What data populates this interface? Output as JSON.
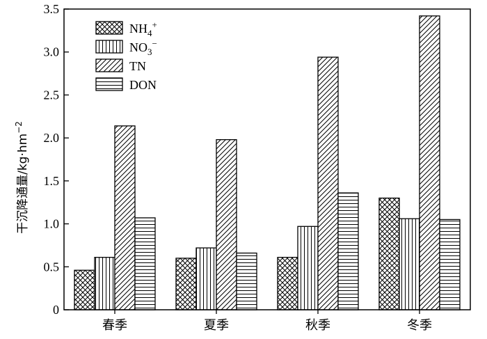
{
  "chart_data": {
    "type": "bar",
    "categories": [
      "春季",
      "夏季",
      "秋季",
      "冬季"
    ],
    "series": [
      {
        "name": "NH4+",
        "pattern": "crosshatch",
        "values": [
          0.46,
          0.6,
          0.61,
          1.3
        ]
      },
      {
        "name": "NO3−",
        "pattern": "vertical",
        "values": [
          0.61,
          0.72,
          0.97,
          1.06
        ]
      },
      {
        "name": "TN",
        "pattern": "diagonal",
        "values": [
          2.14,
          1.98,
          2.94,
          3.42
        ]
      },
      {
        "name": "DON",
        "pattern": "horizontal",
        "values": [
          1.07,
          0.66,
          1.36,
          1.05
        ]
      }
    ],
    "legend": [
      {
        "base": "NH",
        "sub": "4",
        "sup": "+"
      },
      {
        "base": "NO",
        "sub": "3",
        "sup": "−"
      },
      {
        "base": "TN",
        "sub": "",
        "sup": ""
      },
      {
        "base": "DON",
        "sub": "",
        "sup": ""
      }
    ],
    "legend_position": "top-left",
    "ylabel": "干沉降通量/kg·hm",
    "ylabel_sup": "−2",
    "xlabel": "",
    "ylim": [
      0,
      3.5
    ],
    "yticks": [
      0,
      0.5,
      1.0,
      1.5,
      2.0,
      2.5,
      3.0,
      3.5
    ],
    "ytick_labels": [
      "0",
      "0.5",
      "1.0",
      "1.5",
      "2.0",
      "2.5",
      "3.0",
      "3.5"
    ],
    "grid": false
  }
}
